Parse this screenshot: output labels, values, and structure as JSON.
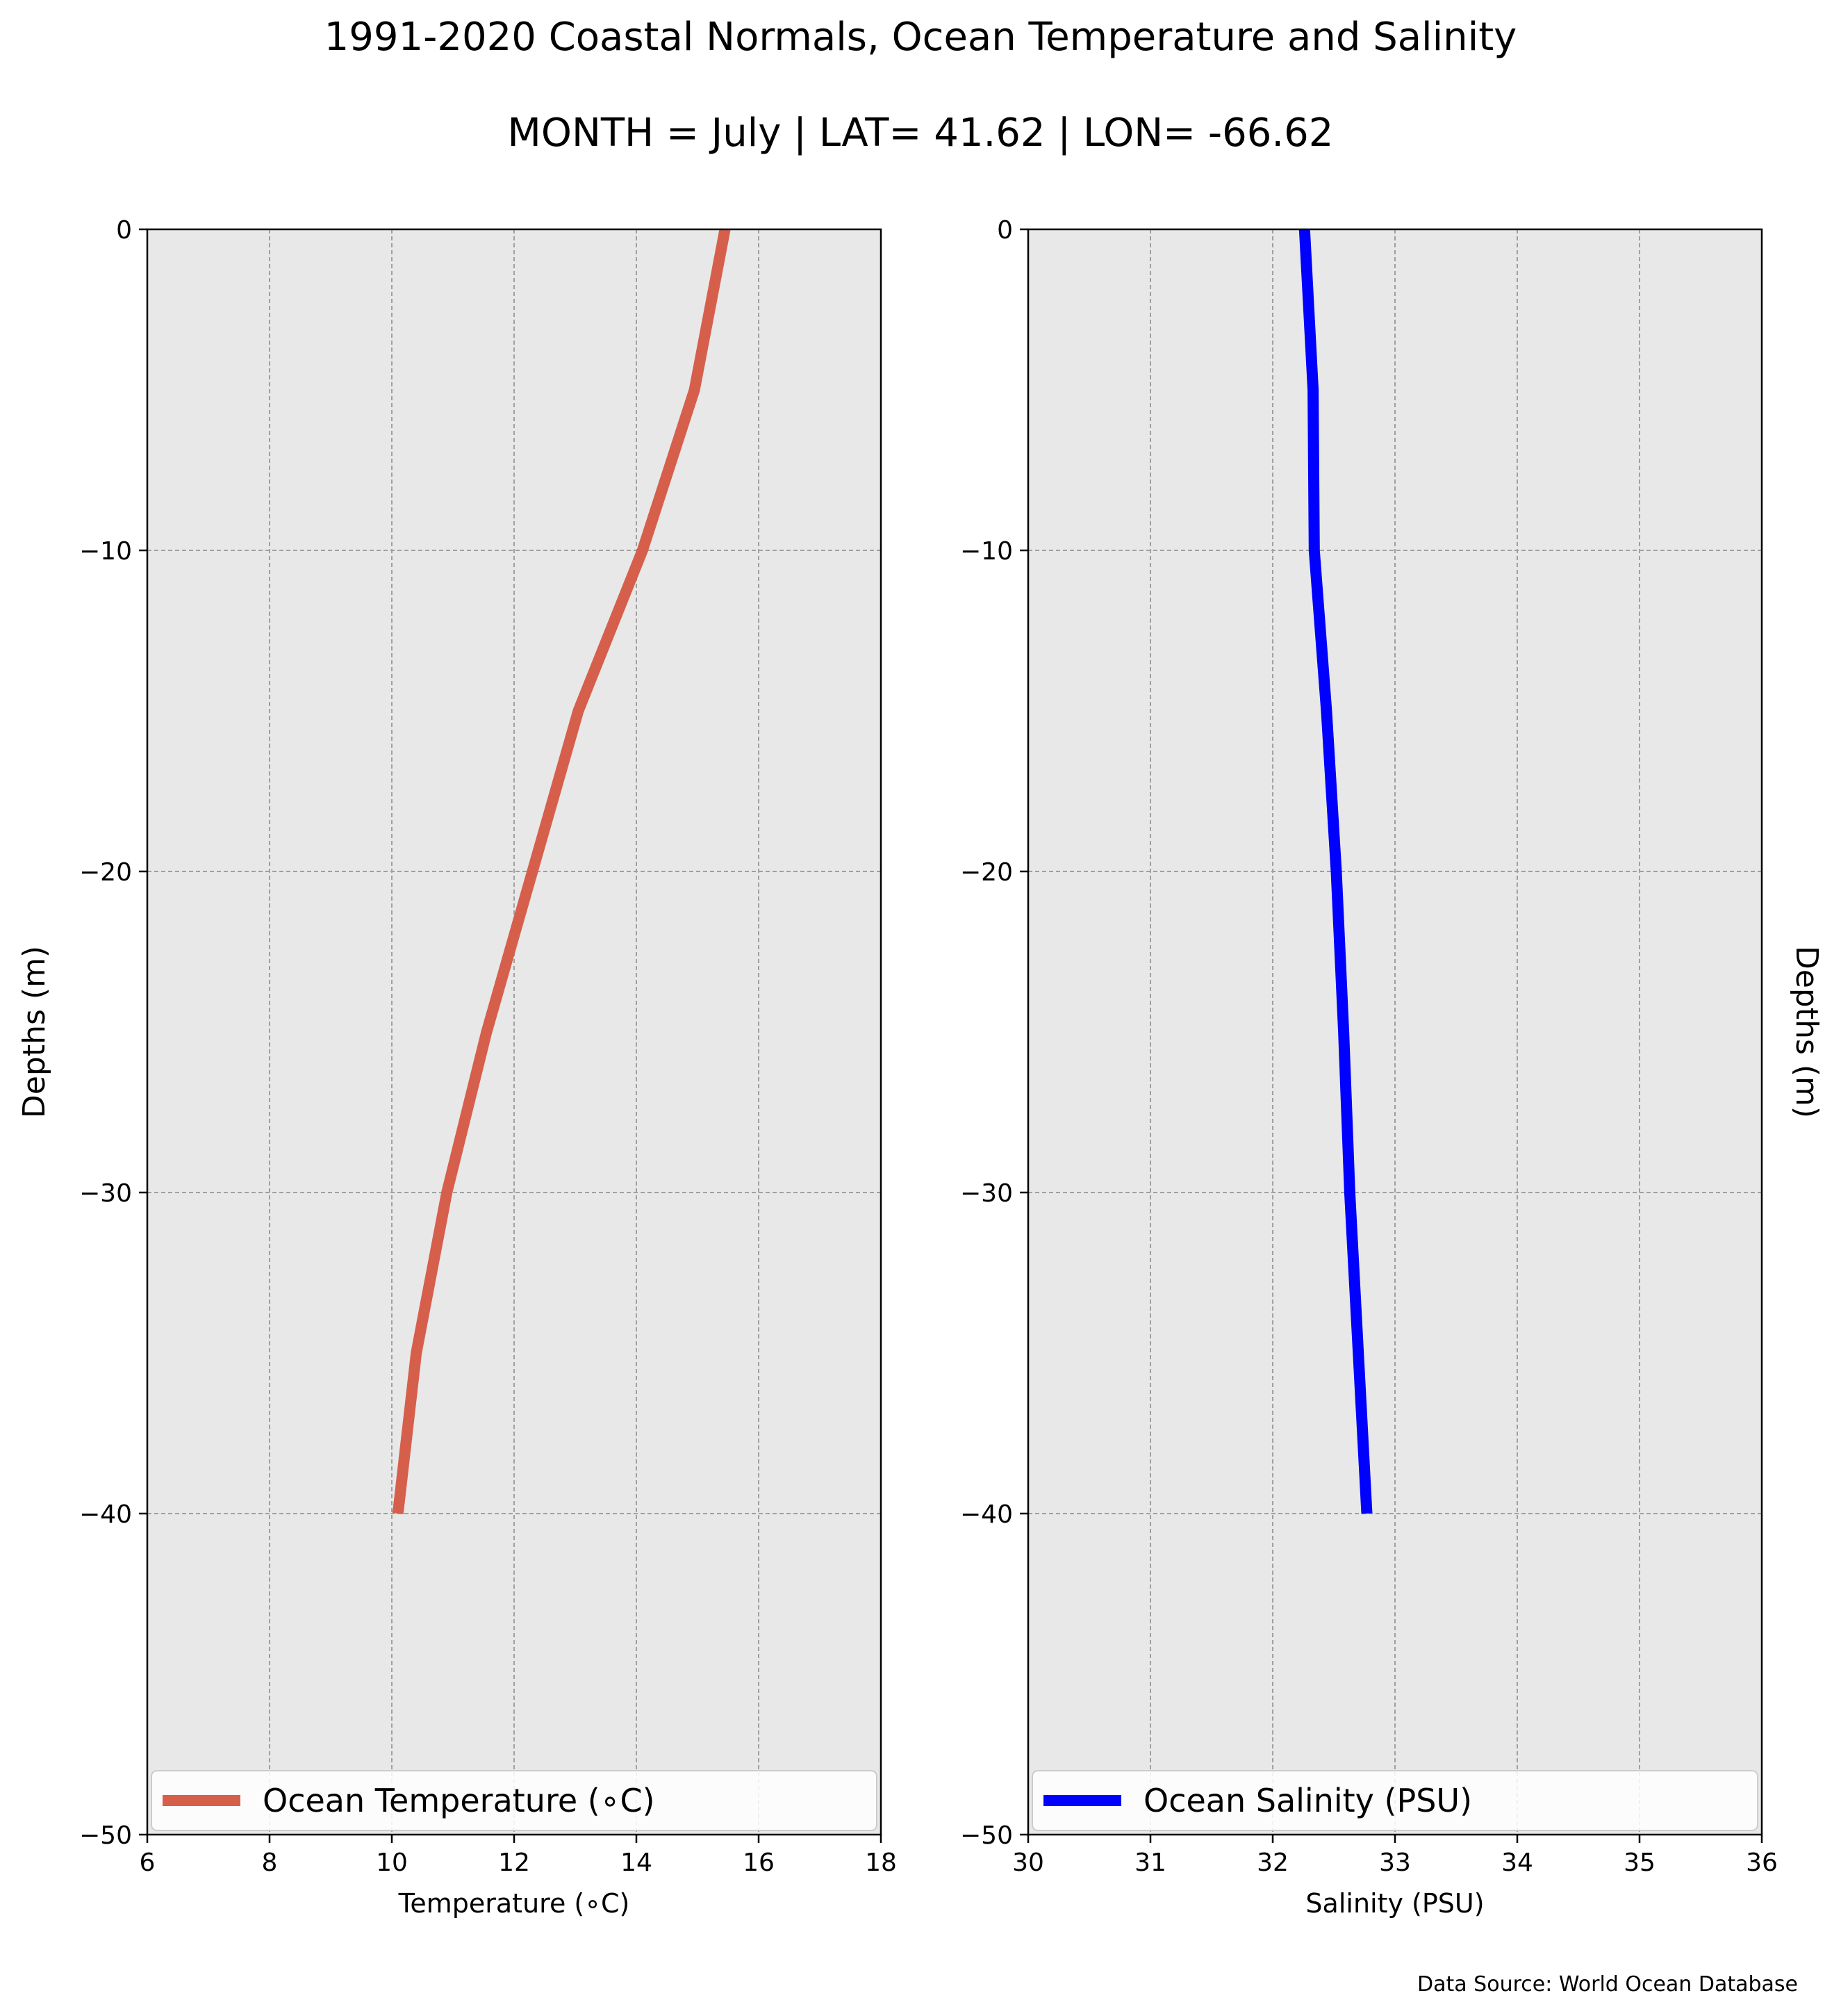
{
  "figure": {
    "title": "1991-2020 Coastal Normals, Ocean Temperature and Salinity",
    "subtitle": "MONTH = July | LAT= 41.62 | LON= -66.62",
    "source_note": "Data Source: World Ocean Database",
    "colors": {
      "panel_bg": "#e8e8e8",
      "grid": "#a0a0a0",
      "axis": "#000000"
    }
  },
  "chart_data": [
    {
      "type": "line",
      "id": "temperature",
      "xlabel": "Temperature (∘C)",
      "ylabel": "Depths (m)",
      "xlim": [
        6,
        18
      ],
      "ylim": [
        -50,
        0
      ],
      "xticks": [
        6,
        8,
        10,
        12,
        14,
        16,
        18
      ],
      "yticks": [
        0,
        -10,
        -20,
        -30,
        -40,
        -50
      ],
      "grid": true,
      "legend": "bottom",
      "series": [
        {
          "name": "Ocean Temperature (∘C)",
          "color": "#d65f4c",
          "x": [
            15.45,
            14.95,
            14.1,
            13.05,
            12.3,
            11.55,
            10.9,
            10.4,
            10.1
          ],
          "y": [
            0,
            -5,
            -10,
            -15,
            -20,
            -25,
            -30,
            -35,
            -40
          ]
        }
      ]
    },
    {
      "type": "line",
      "id": "salinity",
      "xlabel": "Salinity (PSU)",
      "ylabel": "Depths (m)",
      "xlim": [
        30,
        36
      ],
      "ylim": [
        -50,
        0
      ],
      "xticks": [
        30,
        31,
        32,
        33,
        34,
        35,
        36
      ],
      "yticks": [
        0,
        -10,
        -20,
        -30,
        -40,
        -50
      ],
      "grid": true,
      "legend": "bottom",
      "series": [
        {
          "name": "Ocean Salinity (PSU)",
          "color": "#0000ff",
          "x": [
            32.26,
            32.33,
            32.34,
            32.44,
            32.52,
            32.58,
            32.63,
            32.7,
            32.77
          ],
          "y": [
            0,
            -5,
            -10,
            -15,
            -20,
            -25,
            -30,
            -35,
            -40
          ]
        }
      ]
    }
  ]
}
